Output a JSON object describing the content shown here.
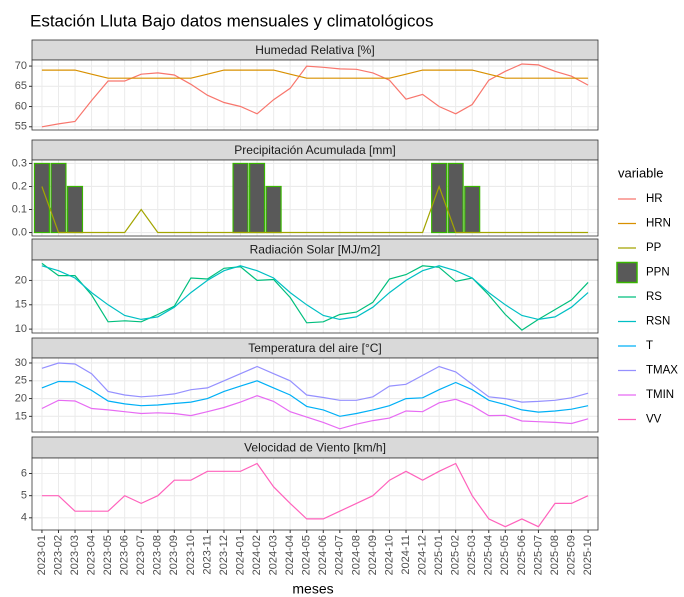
{
  "title": "Estación Lluta Bajo datos mensuales y climatológicos",
  "x_label": "meses",
  "legend_title": "variable",
  "categories": [
    "2023-01",
    "2023-02",
    "2023-03",
    "2023-04",
    "2023-05",
    "2023-06",
    "2023-07",
    "2023-08",
    "2023-09",
    "2023-10",
    "2023-11",
    "2023-12",
    "2024-01",
    "2024-02",
    "2024-03",
    "2024-04",
    "2024-05",
    "2024-06",
    "2024-07",
    "2024-08",
    "2024-09",
    "2024-10",
    "2024-11",
    "2024-12",
    "2025-01",
    "2025-02",
    "2025-03",
    "2025-04",
    "2025-05",
    "2025-06",
    "2025-07",
    "2025-08",
    "2025-09",
    "2025-10"
  ],
  "chart_data": [
    {
      "type": "line",
      "title": "Humedad Relativa [%]",
      "ylim": [
        54.2,
        71.5
      ],
      "yticks": [
        55,
        60,
        65,
        70
      ],
      "grid": true,
      "series": [
        {
          "name": "HR",
          "type": "line",
          "color": "#F8766D",
          "values": [
            55,
            55.7,
            56.3,
            61.5,
            66.3,
            66.3,
            68,
            68.3,
            67.8,
            65.5,
            62.8,
            61,
            60,
            58.2,
            61.7,
            64.5,
            70,
            69.7,
            69.3,
            69.2,
            68.3,
            66.5,
            61.8,
            63,
            60,
            58.2,
            60.5,
            66.5,
            68.7,
            70.5,
            70.3,
            68.7,
            67.5,
            65.3
          ]
        },
        {
          "name": "HRN",
          "type": "line",
          "color": "#D89000",
          "values": [
            69,
            69,
            69,
            68,
            67,
            67,
            67,
            67,
            67,
            67,
            68,
            69,
            69,
            69,
            69,
            68,
            67,
            67,
            67,
            67,
            67,
            67,
            68,
            69,
            69,
            69,
            69,
            68,
            67,
            67,
            67,
            67,
            67,
            67
          ]
        }
      ]
    },
    {
      "type": "line",
      "title": "Precipitación Acumulada [mm]",
      "ylim": [
        -0.015,
        0.315
      ],
      "yticks": [
        {
          "value": 0,
          "label": "0.0"
        },
        0.1,
        0.2,
        0.3
      ],
      "grid": true,
      "series": [
        {
          "name": "PP",
          "type": "line",
          "color": "#A3A500",
          "values": [
            0.2,
            0,
            0,
            0,
            0,
            0,
            0.1,
            0,
            0,
            0,
            0,
            0,
            0,
            0,
            0,
            0,
            0,
            0,
            0,
            0,
            0,
            0,
            0,
            0,
            0.2,
            0,
            0,
            0,
            0,
            0,
            0,
            0,
            0,
            0
          ]
        },
        {
          "name": "PPN",
          "type": "bar",
          "color": "#39B600",
          "fill": "#595959",
          "values": [
            0.3,
            0.3,
            0.2,
            0,
            0,
            0,
            0,
            0,
            0,
            0,
            0,
            0,
            0.3,
            0.3,
            0.2,
            0,
            0,
            0,
            0,
            0,
            0,
            0,
            0,
            0,
            0.3,
            0.3,
            0.2,
            0,
            0,
            0,
            0,
            0,
            0,
            0
          ]
        }
      ]
    },
    {
      "type": "line",
      "title": "Radiación Solar [MJ/m2]",
      "ylim": [
        9.2,
        24.2
      ],
      "yticks": [
        10,
        15,
        20
      ],
      "grid": true,
      "series": [
        {
          "name": "RS",
          "type": "line",
          "color": "#00BF7D",
          "values": [
            23.5,
            21,
            21,
            17,
            11.5,
            11.7,
            11.5,
            13,
            14.7,
            20.5,
            20.3,
            22.5,
            22.8,
            20,
            20.2,
            16.5,
            11.3,
            11.5,
            13,
            13.5,
            15.5,
            20.3,
            21.2,
            23,
            22.7,
            19.8,
            20.5,
            17,
            13,
            9.8,
            12,
            14,
            16,
            19.6
          ]
        },
        {
          "name": "RSN",
          "type": "line",
          "color": "#00BFC4",
          "values": [
            23,
            22,
            20.5,
            17.5,
            15,
            12.8,
            12,
            12.5,
            14.5,
            17.5,
            20,
            22,
            23,
            22,
            20.5,
            17.5,
            15,
            12.8,
            12,
            12.5,
            14.5,
            17.5,
            20,
            22,
            23,
            22,
            20.5,
            17.5,
            15,
            12.8,
            12,
            12.5,
            14.5,
            17.5
          ]
        }
      ]
    },
    {
      "type": "line",
      "title": "Temperatura del aire [°C]",
      "ylim": [
        10.6,
        31.4
      ],
      "yticks": [
        15,
        20,
        25,
        30
      ],
      "grid": true,
      "series": [
        {
          "name": "T",
          "type": "line",
          "color": "#00B0F6",
          "values": [
            23,
            24.8,
            24.7,
            22.3,
            19.3,
            18.5,
            18,
            18.2,
            18.6,
            19,
            20,
            22,
            23.5,
            25,
            23,
            21,
            17.8,
            16.8,
            15,
            15.8,
            16.8,
            18,
            20,
            20.2,
            22.5,
            24.5,
            22.5,
            19.5,
            18.3,
            16.8,
            16.2,
            16.5,
            17,
            18
          ]
        },
        {
          "name": "TMAX",
          "type": "line",
          "color": "#9590FF",
          "values": [
            28.5,
            30,
            29.7,
            27,
            22,
            21,
            20.5,
            20.8,
            21.3,
            22.5,
            23,
            25,
            27,
            29,
            27,
            25,
            21,
            20.3,
            19.5,
            19.5,
            20.5,
            23.5,
            24,
            26.5,
            29,
            27.5,
            24,
            20.5,
            20,
            19,
            19.2,
            19.5,
            20.2,
            21.5
          ]
        },
        {
          "name": "TMIN",
          "type": "line",
          "color": "#E76BF3",
          "values": [
            17.2,
            19.5,
            19.3,
            17.2,
            16.8,
            16.3,
            15.8,
            16,
            15.8,
            15.2,
            16.3,
            17.5,
            19,
            20.8,
            19.2,
            16.3,
            14.8,
            13.3,
            11.5,
            12.8,
            13.8,
            14.5,
            16.5,
            16.3,
            18.8,
            19.8,
            18,
            15.2,
            15.3,
            13.7,
            13.5,
            13.3,
            13,
            14.3
          ]
        }
      ]
    },
    {
      "type": "line",
      "title": "Velocidad de Viento [km/h]",
      "ylim": [
        3.45,
        6.7
      ],
      "yticks": [
        4,
        5,
        6
      ],
      "grid": true,
      "series": [
        {
          "name": "VV",
          "type": "line",
          "color": "#FF62BC",
          "values": [
            5,
            5,
            4.3,
            4.3,
            4.3,
            5,
            4.65,
            5,
            5.7,
            5.7,
            6.1,
            6.1,
            6.1,
            6.45,
            5.4,
            4.65,
            3.95,
            3.95,
            4.3,
            4.65,
            5,
            5.7,
            6.1,
            5.7,
            6.1,
            6.45,
            5,
            3.95,
            3.6,
            3.95,
            3.6,
            4.65,
            4.65,
            5
          ]
        }
      ]
    }
  ]
}
